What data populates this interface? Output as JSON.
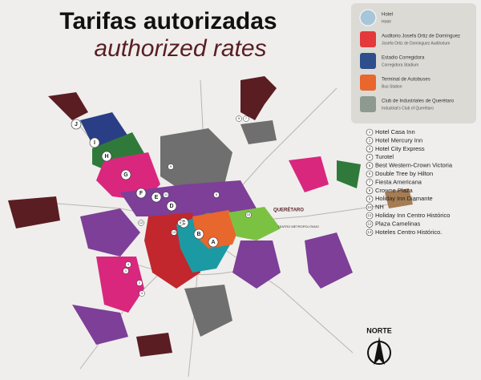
{
  "header": {
    "title": "Tarifas autorizadas",
    "subtitle": "authorized rates"
  },
  "legend": [
    {
      "label": "Hotel",
      "sublabel": "Hotel"
    },
    {
      "label": "Auditorio Josefa Ortiz de Domínguez",
      "sublabel": "Josefa Ortiz de Dominguez Auditorium"
    },
    {
      "label": "Estadio Corregidora",
      "sublabel": "Corregidora Stadium"
    },
    {
      "label": "Terminal de Autobuses",
      "sublabel": "Bus Station"
    },
    {
      "label": "Club de Industriales de Querétaro",
      "sublabel": "Industrial's Club of Querétaro"
    }
  ],
  "hotels": [
    {
      "number": "1",
      "name": "Hotel Casa Inn"
    },
    {
      "number": "2",
      "name": "Hotel Mercury Inn"
    },
    {
      "number": "3",
      "name": "Hotel City Express"
    },
    {
      "number": "4",
      "name": "Turotel"
    },
    {
      "number": "5",
      "name": "Best Western-Crown Victoria"
    },
    {
      "number": "6",
      "name": "Double Tree by Hilton"
    },
    {
      "number": "7",
      "name": "Fiesta Americana"
    },
    {
      "number": "8",
      "name": "Crowne Plaza"
    },
    {
      "number": "9",
      "name": "Holiday Inn Diamante"
    },
    {
      "number": "10",
      "name": "NH"
    },
    {
      "number": "11",
      "name": "Holiday Inn Centro Histórico"
    },
    {
      "number": "12",
      "name": "Plaza Camelinas"
    },
    {
      "number": "13",
      "name": "Hoteles Centro Histórico."
    }
  ],
  "map_labels": [
    "A",
    "B",
    "C",
    "D",
    "E",
    "F",
    "G",
    "H",
    "I",
    "J"
  ],
  "landmarks": {
    "city": "QUERÉTARO",
    "theater": "TEATRO METROPOLITANO"
  },
  "compass": "NORTE"
}
